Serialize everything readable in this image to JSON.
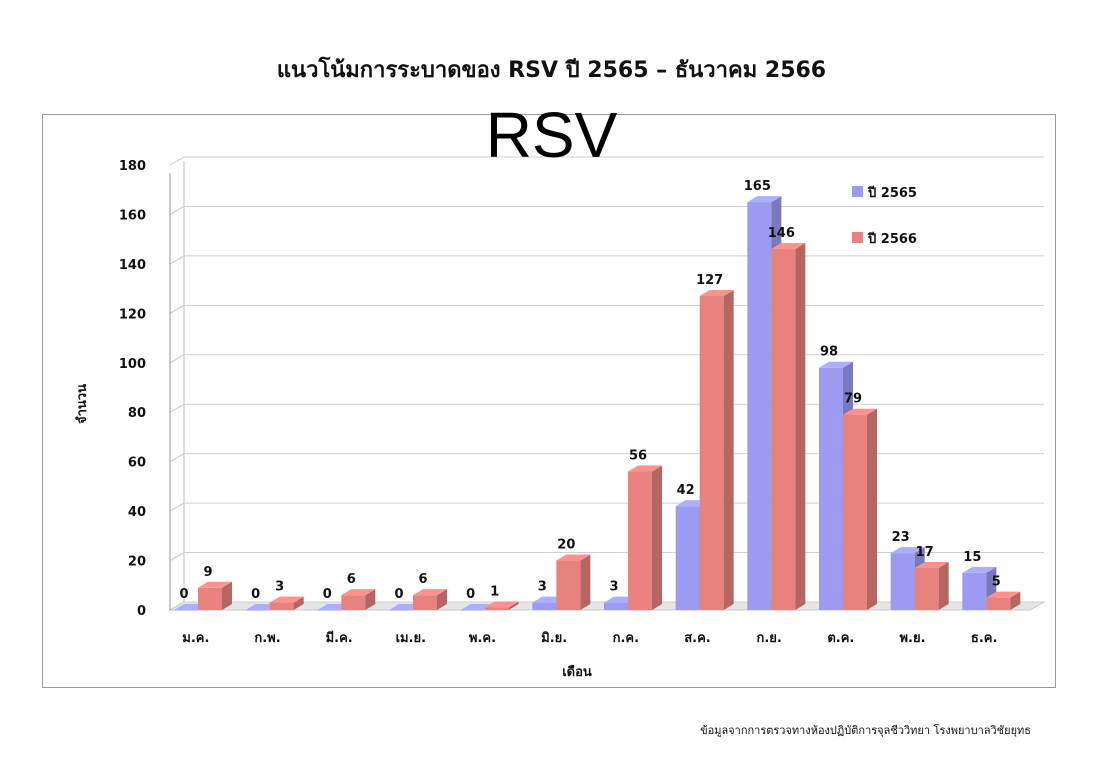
{
  "page": {
    "title": "แนวโน้มการระบาดของ RSV ปี 2565 – ธันวาคม 2566",
    "footer": "ข้อมูลจากการตรวจทางห้องปฏิบัติการจุลชีววิทยา โรงพยาบาลวิชัยยุทธ"
  },
  "chart_data": {
    "type": "bar",
    "title": "RSV",
    "xlabel": "เดือน",
    "ylabel": "จำนวน",
    "ylim": [
      0,
      180
    ],
    "yticks": [
      0,
      20,
      40,
      60,
      80,
      100,
      120,
      140,
      160,
      180
    ],
    "grid": true,
    "legend_position": "top-right",
    "categories": [
      "ม.ค.",
      "ก.พ.",
      "มี.ค.",
      "เม.ย.",
      "พ.ค.",
      "มิ.ย.",
      "ก.ค.",
      "ส.ค.",
      "ก.ย.",
      "ต.ค.",
      "พ.ย.",
      "ธ.ค."
    ],
    "series": [
      {
        "name": "ปี 2565",
        "color": "#9b9bf2",
        "values": [
          0,
          0,
          0,
          0,
          0,
          3,
          3,
          42,
          165,
          98,
          23,
          15
        ]
      },
      {
        "name": "ปี 2566",
        "color": "#e8827e",
        "values": [
          9,
          3,
          6,
          6,
          1,
          20,
          56,
          127,
          146,
          79,
          17,
          5
        ]
      }
    ]
  }
}
